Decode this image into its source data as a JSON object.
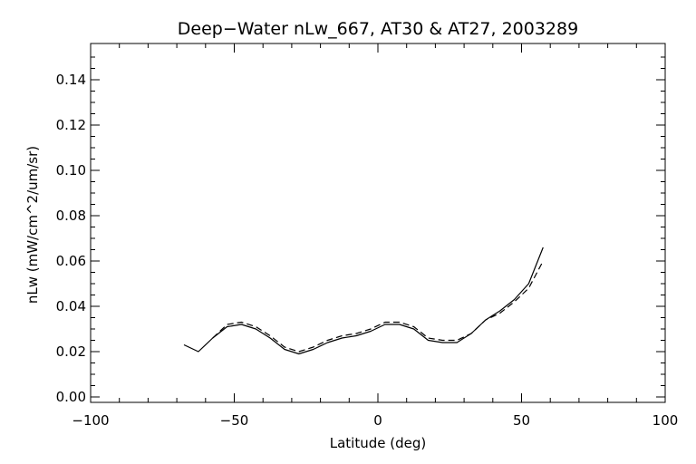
{
  "chart_data": {
    "type": "line",
    "title": "Deep−Water nLw_667, AT30 & AT27, 2003289",
    "xlabel": "Latitude (deg)",
    "ylabel": "nLw (mW/cm^2/um/sr)",
    "xlim": [
      -100,
      100
    ],
    "ylim": [
      0.0,
      0.15
    ],
    "xticks": [
      -100,
      -50,
      0,
      50,
      100
    ],
    "xtick_labels": [
      "−100",
      "−50",
      "0",
      "50",
      "100"
    ],
    "yticks": [
      0.0,
      0.02,
      0.04,
      0.06,
      0.08,
      0.1,
      0.12,
      0.14
    ],
    "ytick_labels": [
      "0.00",
      "0.02",
      "0.04",
      "0.06",
      "0.08",
      "0.10",
      "0.12",
      "0.14"
    ],
    "grid": false,
    "series": [
      {
        "style": "solid",
        "color": "#000000",
        "x": [
          -67.5,
          -62.5,
          -57.5,
          -52.5,
          -47.5,
          -42.5,
          -37.5,
          -32.5,
          -27.5,
          -22.5,
          -17.5,
          -12.5,
          -7.5,
          -2.5,
          2.5,
          7.5,
          12.5,
          17.5,
          22.5,
          27.5,
          32.5,
          37.5,
          42.5,
          47.5,
          52.5,
          57.5
        ],
        "y": [
          0.023,
          0.02,
          0.026,
          0.031,
          0.032,
          0.03,
          0.026,
          0.021,
          0.019,
          0.021,
          0.024,
          0.026,
          0.027,
          0.029,
          0.032,
          0.032,
          0.03,
          0.025,
          0.024,
          0.024,
          0.028,
          0.034,
          0.038,
          0.043,
          0.05,
          0.066
        ]
      },
      {
        "style": "dashed",
        "color": "#000000",
        "x": [
          -57.5,
          -52.5,
          -47.5,
          -42.5,
          -37.5,
          -32.5,
          -27.5,
          -22.5,
          -17.5,
          -12.5,
          -7.5,
          -2.5,
          2.5,
          7.5,
          12.5,
          17.5,
          22.5,
          27.5,
          32.5,
          37.5,
          42.5,
          47.5,
          52.5,
          57.5
        ],
        "y": [
          0.026,
          0.032,
          0.033,
          0.031,
          0.027,
          0.022,
          0.02,
          0.022,
          0.025,
          0.027,
          0.028,
          0.03,
          0.033,
          0.033,
          0.031,
          0.026,
          0.025,
          0.025,
          0.028,
          0.034,
          0.037,
          0.042,
          0.048,
          0.06
        ]
      }
    ]
  }
}
